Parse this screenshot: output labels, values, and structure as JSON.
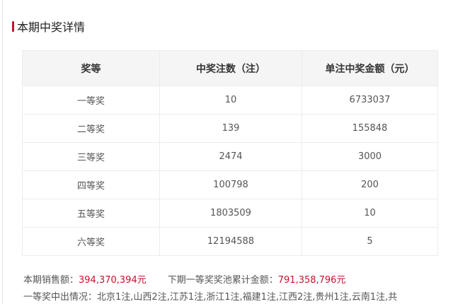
{
  "title": "本期中奖详情",
  "headers": [
    "奖等",
    "中奖注数（注）",
    "单注中奖金额（元）"
  ],
  "rows": [
    [
      "一等奖",
      "10",
      "6733037"
    ],
    [
      "二等奖",
      "139",
      "155848"
    ],
    [
      "三等奖",
      "2474",
      "3000"
    ],
    [
      "四等奖",
      "100798",
      "200"
    ],
    [
      "五等奖",
      "1803509",
      "10"
    ],
    [
      "六等奖",
      "12194588",
      "5"
    ]
  ],
  "sales_label": "本期销售额：",
  "sales_value": "394,370,394元",
  "pool_label": "下期一等奖奖池累计金额：",
  "pool_value": "791,358,796元",
  "first_prize_label": "一等奖中出情况：",
  "first_prize_detail": "北京1注,山西2注,江苏1注,浙江1注,福建1注,江西2注,贵州1注,云南1注,共"
}
